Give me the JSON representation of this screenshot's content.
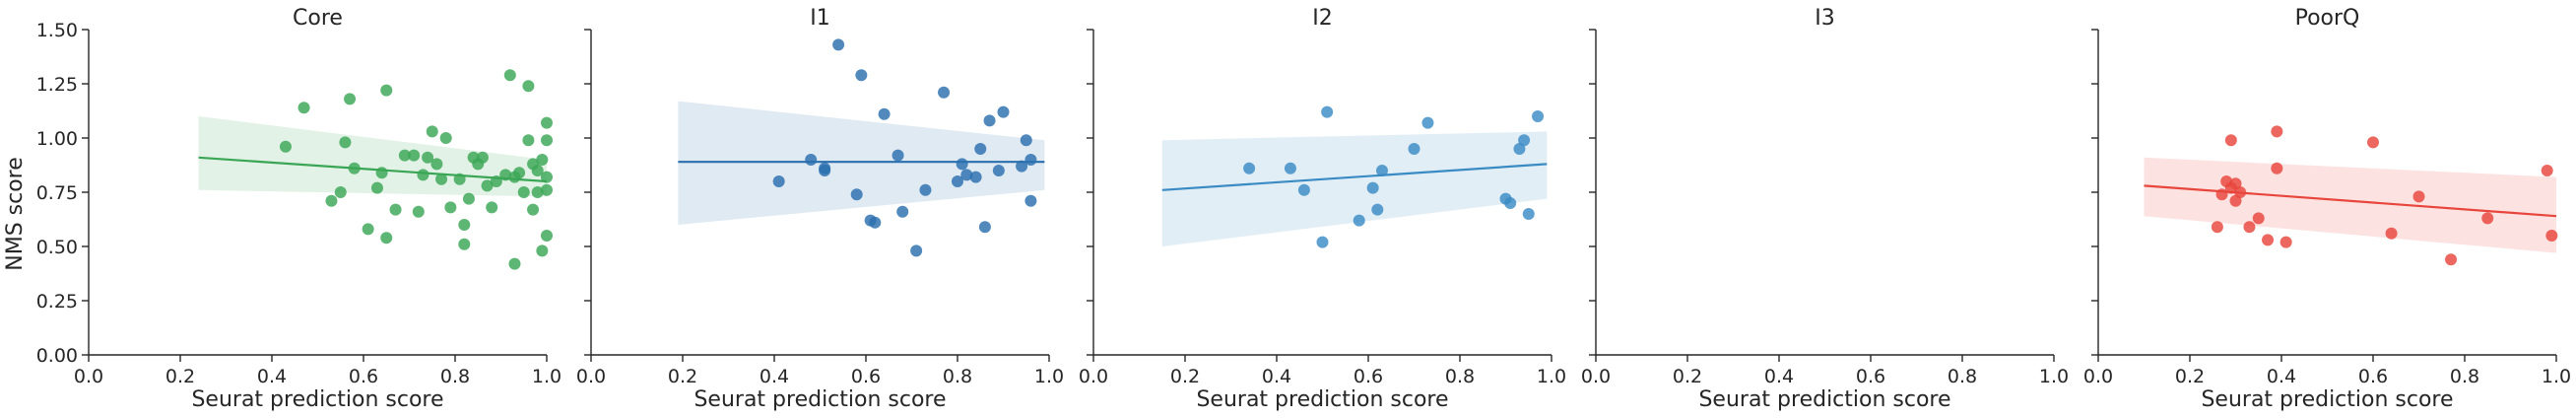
{
  "y_axis_label": "NMS score",
  "x_axis_label": "Seurat prediction score",
  "x_ticks": [
    "0.0",
    "0.2",
    "0.4",
    "0.6",
    "0.8",
    "1.0"
  ],
  "y_ticks": [
    "0.00",
    "0.25",
    "0.50",
    "0.75",
    "1.00",
    "1.25",
    "1.50"
  ],
  "chart_data": [
    {
      "type": "scatter",
      "title": "Core",
      "color": "#3aa655",
      "xlabel": "Seurat prediction score",
      "ylabel": "NMS score",
      "xlim": [
        0,
        1
      ],
      "ylim": [
        0,
        1.5
      ],
      "fit": {
        "x": [
          0.24,
          1.0
        ],
        "y": [
          0.91,
          0.8
        ],
        "band_lower": [
          0.76,
          0.73
        ],
        "band_upper": [
          1.1,
          0.9
        ]
      },
      "points": [
        [
          0.43,
          0.96
        ],
        [
          0.47,
          1.14
        ],
        [
          0.53,
          0.71
        ],
        [
          0.55,
          0.75
        ],
        [
          0.56,
          0.98
        ],
        [
          0.57,
          1.18
        ],
        [
          0.58,
          0.86
        ],
        [
          0.61,
          0.58
        ],
        [
          0.63,
          0.77
        ],
        [
          0.64,
          0.84
        ],
        [
          0.65,
          0.54
        ],
        [
          0.65,
          1.22
        ],
        [
          0.67,
          0.67
        ],
        [
          0.69,
          0.92
        ],
        [
          0.71,
          0.92
        ],
        [
          0.72,
          0.66
        ],
        [
          0.73,
          0.83
        ],
        [
          0.74,
          0.91
        ],
        [
          0.75,
          1.03
        ],
        [
          0.76,
          0.88
        ],
        [
          0.77,
          0.81
        ],
        [
          0.78,
          1.0
        ],
        [
          0.79,
          0.68
        ],
        [
          0.81,
          0.81
        ],
        [
          0.82,
          0.6
        ],
        [
          0.82,
          0.51
        ],
        [
          0.83,
          0.72
        ],
        [
          0.84,
          0.91
        ],
        [
          0.85,
          0.88
        ],
        [
          0.86,
          0.91
        ],
        [
          0.87,
          0.78
        ],
        [
          0.88,
          0.68
        ],
        [
          0.89,
          0.8
        ],
        [
          0.91,
          0.83
        ],
        [
          0.92,
          1.29
        ],
        [
          0.93,
          0.42
        ],
        [
          0.93,
          0.82
        ],
        [
          0.94,
          0.84
        ],
        [
          0.95,
          0.75
        ],
        [
          0.96,
          1.24
        ],
        [
          0.96,
          0.99
        ],
        [
          0.97,
          0.88
        ],
        [
          0.97,
          0.67
        ],
        [
          0.98,
          0.75
        ],
        [
          0.98,
          0.85
        ],
        [
          0.99,
          0.9
        ],
        [
          0.99,
          0.48
        ],
        [
          1.0,
          1.07
        ],
        [
          1.0,
          0.99
        ],
        [
          1.0,
          0.82
        ],
        [
          1.0,
          0.55
        ],
        [
          1.0,
          0.76
        ]
      ]
    },
    {
      "type": "scatter",
      "title": "I1",
      "color": "#2b6fae",
      "xlabel": "Seurat prediction score",
      "ylabel": "",
      "xlim": [
        0,
        1
      ],
      "ylim": [
        0,
        1.5
      ],
      "fit": {
        "x": [
          0.19,
          0.99
        ],
        "y": [
          0.89,
          0.89
        ],
        "band_lower": [
          0.6,
          0.76
        ],
        "band_upper": [
          1.17,
          0.99
        ]
      },
      "points": [
        [
          0.41,
          0.8
        ],
        [
          0.48,
          0.9
        ],
        [
          0.51,
          0.86
        ],
        [
          0.51,
          0.85
        ],
        [
          0.54,
          1.43
        ],
        [
          0.58,
          0.74
        ],
        [
          0.59,
          1.29
        ],
        [
          0.61,
          0.62
        ],
        [
          0.62,
          0.61
        ],
        [
          0.64,
          1.11
        ],
        [
          0.67,
          0.92
        ],
        [
          0.68,
          0.66
        ],
        [
          0.71,
          0.48
        ],
        [
          0.73,
          0.76
        ],
        [
          0.77,
          1.21
        ],
        [
          0.8,
          0.8
        ],
        [
          0.81,
          0.88
        ],
        [
          0.82,
          0.83
        ],
        [
          0.84,
          0.82
        ],
        [
          0.85,
          0.95
        ],
        [
          0.86,
          0.59
        ],
        [
          0.87,
          1.08
        ],
        [
          0.89,
          0.85
        ],
        [
          0.9,
          1.12
        ],
        [
          0.94,
          0.87
        ],
        [
          0.95,
          0.99
        ],
        [
          0.96,
          0.9
        ],
        [
          0.96,
          0.71
        ]
      ]
    },
    {
      "type": "scatter",
      "title": "I2",
      "color": "#3a8bc4",
      "xlabel": "Seurat prediction score",
      "ylabel": "",
      "xlim": [
        0,
        1
      ],
      "ylim": [
        0,
        1.5
      ],
      "fit": {
        "x": [
          0.15,
          0.99
        ],
        "y": [
          0.76,
          0.88
        ],
        "band_lower": [
          0.5,
          0.72
        ],
        "band_upper": [
          0.99,
          1.03
        ]
      },
      "points": [
        [
          0.34,
          0.86
        ],
        [
          0.43,
          0.86
        ],
        [
          0.46,
          0.76
        ],
        [
          0.5,
          0.52
        ],
        [
          0.51,
          1.12
        ],
        [
          0.58,
          0.62
        ],
        [
          0.61,
          0.77
        ],
        [
          0.62,
          0.67
        ],
        [
          0.63,
          0.85
        ],
        [
          0.7,
          0.95
        ],
        [
          0.73,
          1.07
        ],
        [
          0.9,
          0.72
        ],
        [
          0.91,
          0.7
        ],
        [
          0.93,
          0.95
        ],
        [
          0.94,
          0.99
        ],
        [
          0.95,
          0.65
        ],
        [
          0.97,
          1.1
        ]
      ]
    },
    {
      "type": "scatter",
      "title": "I3",
      "color": "#3a8bc4",
      "xlabel": "Seurat prediction score",
      "ylabel": "",
      "xlim": [
        0,
        1
      ],
      "ylim": [
        0,
        1.5
      ],
      "points": []
    },
    {
      "type": "scatter",
      "title": "PoorQ",
      "color": "#e8463c",
      "xlabel": "Seurat prediction score",
      "ylabel": "",
      "xlim": [
        0,
        1
      ],
      "ylim": [
        0,
        1.5
      ],
      "fit": {
        "x": [
          0.1,
          1.0
        ],
        "y": [
          0.78,
          0.64
        ],
        "band_lower": [
          0.64,
          0.47
        ],
        "band_upper": [
          0.91,
          0.82
        ]
      },
      "points": [
        [
          0.26,
          0.59
        ],
        [
          0.27,
          0.74
        ],
        [
          0.28,
          0.8
        ],
        [
          0.29,
          0.99
        ],
        [
          0.29,
          0.77
        ],
        [
          0.3,
          0.79
        ],
        [
          0.3,
          0.71
        ],
        [
          0.31,
          0.75
        ],
        [
          0.33,
          0.59
        ],
        [
          0.35,
          0.63
        ],
        [
          0.37,
          0.53
        ],
        [
          0.39,
          1.03
        ],
        [
          0.39,
          0.86
        ],
        [
          0.41,
          0.52
        ],
        [
          0.6,
          0.98
        ],
        [
          0.64,
          0.56
        ],
        [
          0.7,
          0.73
        ],
        [
          0.77,
          0.44
        ],
        [
          0.85,
          0.63
        ],
        [
          0.98,
          0.85
        ],
        [
          0.99,
          0.55
        ]
      ]
    }
  ]
}
